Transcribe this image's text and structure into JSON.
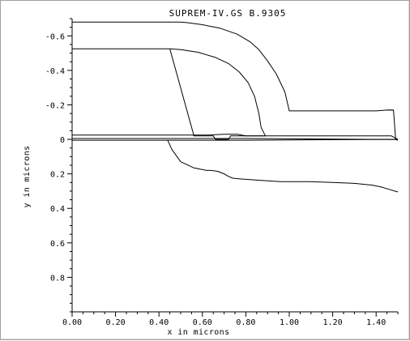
{
  "chart_data": {
    "type": "line",
    "title": "SUPREM-IV.GS B.9305",
    "xlabel": "x in microns",
    "ylabel": "y in microns",
    "xlim": [
      0.0,
      1.5
    ],
    "ylim": [
      -0.7,
      1.0
    ],
    "y_inverted": true,
    "x_ticks": [
      "0.00",
      "0.20",
      "0.40",
      "0.60",
      "0.80",
      "1.00",
      "1.20",
      "1.40"
    ],
    "x_tick_values": [
      0.0,
      0.2,
      0.4,
      0.6,
      0.8,
      1.0,
      1.2,
      1.4
    ],
    "y_ticks": [
      "-0.6",
      "-0.4",
      "-0.2",
      "0",
      "0.2",
      "0.4",
      "0.6",
      "0.8"
    ],
    "y_tick_values": [
      -0.6,
      -0.4,
      -0.2,
      0.0,
      0.2,
      0.4,
      0.6,
      0.8
    ],
    "grid": false,
    "series": [
      {
        "x": [
          0.0,
          0.5,
          0.54,
          0.6,
          0.68,
          0.76,
          0.82,
          0.86,
          0.9,
          0.94,
          0.98,
          1.0,
          1.2,
          1.4,
          1.45,
          1.48
        ],
        "y": [
          -0.68,
          -0.68,
          -0.675,
          -0.665,
          -0.645,
          -0.61,
          -0.565,
          -0.52,
          -0.455,
          -0.38,
          -0.275,
          -0.165,
          -0.165,
          -0.165,
          -0.17,
          -0.17
        ]
      },
      {
        "x": [
          0.0,
          0.45,
          0.56,
          0.63,
          0.7,
          0.76,
          0.8,
          0.84,
          0.86,
          0.87,
          0.89
        ],
        "y": [
          -0.525,
          -0.525,
          -0.025,
          -0.025,
          -0.03,
          -0.03,
          -0.02,
          -0.02,
          -0.02,
          -0.02,
          -0.02
        ]
      },
      {
        "x": [
          0.45,
          0.5,
          0.58,
          0.66,
          0.72,
          0.77,
          0.81,
          0.84,
          0.86,
          0.87,
          0.89
        ],
        "y": [
          -0.525,
          -0.52,
          -0.505,
          -0.475,
          -0.44,
          -0.39,
          -0.33,
          -0.25,
          -0.15,
          -0.07,
          -0.02
        ]
      },
      {
        "x": [
          0.0,
          0.56,
          0.56,
          0.65,
          0.66,
          0.72,
          0.73,
          1.44,
          1.47,
          1.5
        ],
        "y": [
          -0.025,
          -0.025,
          -0.02,
          -0.02,
          0.0,
          0.0,
          -0.02,
          -0.02,
          -0.02,
          0.0
        ]
      },
      {
        "x": [
          0.0,
          0.45,
          0.6,
          0.8,
          1.44,
          1.5
        ],
        "y": [
          -0.005,
          -0.005,
          -0.005,
          -0.005,
          0.0,
          0.0
        ]
      },
      {
        "x": [
          0.0,
          0.45,
          0.6,
          0.8,
          1.44,
          1.5
        ],
        "y": [
          0.005,
          0.005,
          0.005,
          0.005,
          0.0,
          0.0
        ]
      },
      {
        "x": [
          0.44,
          0.46,
          0.5,
          0.56,
          0.62,
          0.64,
          0.67,
          0.7,
          0.72,
          0.74,
          0.78,
          0.84,
          0.9,
          0.96,
          1.02,
          1.08,
          1.2,
          1.3,
          1.38,
          1.42,
          1.46,
          1.5
        ],
        "y": [
          0.005,
          0.06,
          0.13,
          0.165,
          0.18,
          0.18,
          0.185,
          0.2,
          0.215,
          0.225,
          0.23,
          0.235,
          0.24,
          0.245,
          0.245,
          0.245,
          0.25,
          0.255,
          0.265,
          0.275,
          0.29,
          0.305
        ]
      },
      {
        "x": [
          1.45,
          1.48,
          1.49,
          1.5
        ],
        "y": [
          -0.17,
          -0.17,
          0.0,
          0.005
        ]
      }
    ]
  }
}
